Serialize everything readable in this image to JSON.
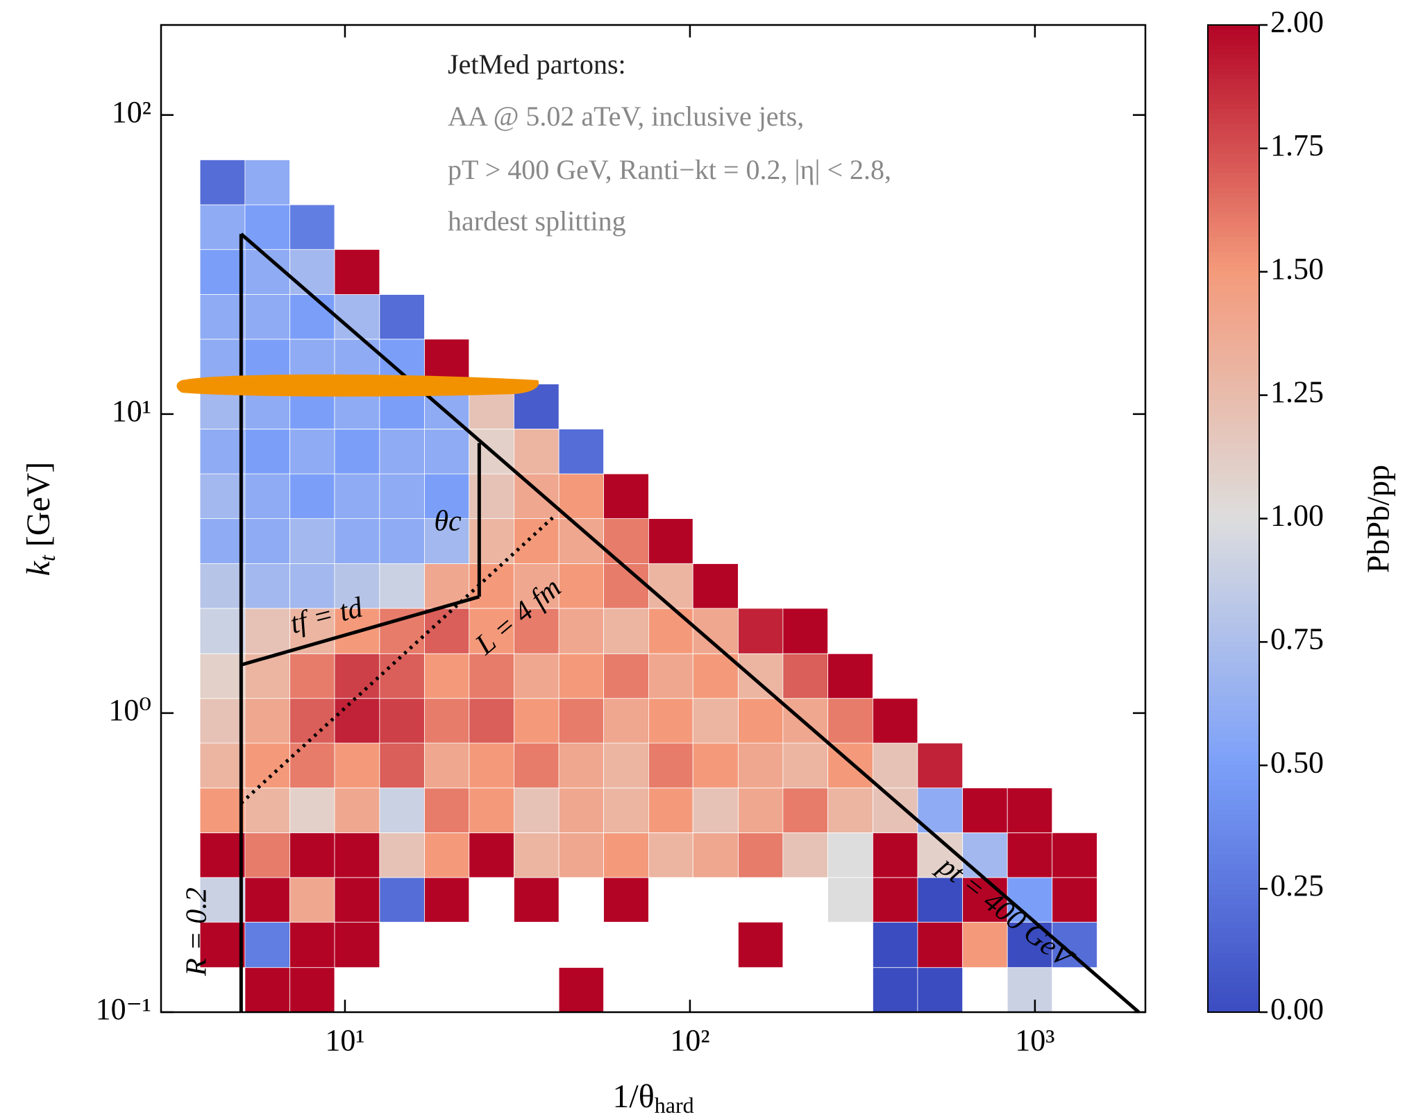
{
  "chart_data": {
    "type": "heatmap",
    "text_lines": [
      "JetMed partons:",
      "AA @ 5.02 aTeV, inclusive jets,",
      "pT > 400 GeV, Ranti−kt = 0.2, |η| < 2.8,",
      "hardest splitting"
    ],
    "xlabel": {
      "main": "1/θ",
      "sub": "hard"
    },
    "ylabel": {
      "main": "k",
      "sub": "t",
      "rest": " [GeV]"
    },
    "colorbar_label": "PbPb/pp",
    "colormap": "coolwarm",
    "xscale": "log",
    "yscale": "log",
    "xlim": [
      2.93,
      2090
    ],
    "ylim": [
      0.1,
      200
    ],
    "clim": [
      0,
      2
    ],
    "xticks": [
      {
        "value": 10,
        "label": "10¹"
      },
      {
        "value": 100,
        "label": "10²"
      },
      {
        "value": 1000,
        "label": "10³"
      }
    ],
    "yticks": [
      {
        "value": 0.1,
        "label": "10⁻¹"
      },
      {
        "value": 1,
        "label": "10⁰"
      },
      {
        "value": 10,
        "label": "10¹"
      },
      {
        "value": 100,
        "label": "10²"
      }
    ],
    "cticks": [
      {
        "value": 0,
        "label": "0.00"
      },
      {
        "value": 0.25,
        "label": "0.25"
      },
      {
        "value": 0.5,
        "label": "0.50"
      },
      {
        "value": 0.75,
        "label": "0.75"
      },
      {
        "value": 1,
        "label": "1.00"
      },
      {
        "value": 1.25,
        "label": "1.25"
      },
      {
        "value": 1.5,
        "label": "1.50"
      },
      {
        "value": 1.75,
        "label": "1.75"
      },
      {
        "value": 2,
        "label": "2.00"
      }
    ],
    "xbins": [
      3.8,
      5.13,
      6.92,
      9.33,
      12.6,
      17.0,
      22.9,
      30.9,
      41.7,
      56.2,
      75.9,
      102,
      138,
      186,
      251,
      339,
      457,
      617,
      832,
      1122,
      1514
    ],
    "ybins": [
      0.1,
      0.141,
      0.2,
      0.282,
      0.398,
      0.562,
      0.794,
      1.12,
      1.58,
      2.24,
      3.16,
      4.47,
      6.31,
      8.91,
      12.6,
      17.8,
      25.1,
      35.5,
      50.1,
      70.8
    ],
    "z": [
      [
        null,
        2,
        2,
        null,
        null,
        null,
        null,
        null,
        2,
        null,
        null,
        null,
        null,
        null,
        null,
        0,
        0,
        null,
        0.9,
        null
      ],
      [
        2,
        0.3,
        2,
        2,
        null,
        null,
        null,
        null,
        null,
        null,
        null,
        null,
        2,
        null,
        null,
        0,
        2,
        1.5,
        0,
        0.2
      ],
      [
        0.9,
        2,
        1.4,
        2,
        0.2,
        2,
        null,
        2,
        null,
        2,
        null,
        null,
        null,
        null,
        1,
        2,
        0,
        2,
        0.5,
        2
      ],
      [
        2,
        1.6,
        2,
        2,
        1.2,
        1.5,
        2,
        1.3,
        1.4,
        1.5,
        1.3,
        1.4,
        1.6,
        1.2,
        1,
        2,
        1.1,
        0.7,
        2,
        2
      ],
      [
        1.5,
        1.3,
        1.1,
        1.4,
        0.9,
        1.6,
        1.5,
        1.2,
        1.4,
        1.3,
        1.5,
        1.2,
        1.4,
        1.6,
        1.3,
        1.2,
        0.6,
        2,
        2,
        null
      ],
      [
        1.3,
        1.5,
        1.6,
        1.5,
        1.7,
        1.4,
        1.5,
        1.6,
        1.4,
        1.3,
        1.6,
        1.5,
        1.4,
        1.3,
        1.5,
        1.2,
        1.9,
        null,
        null,
        null
      ],
      [
        1.2,
        1.4,
        1.7,
        1.9,
        1.8,
        1.6,
        1.7,
        1.5,
        1.6,
        1.4,
        1.5,
        1.3,
        1.5,
        1.4,
        1.6,
        2,
        null,
        null,
        null,
        null
      ],
      [
        1.1,
        1.3,
        1.6,
        1.8,
        1.7,
        1.5,
        1.6,
        1.4,
        1.5,
        1.6,
        1.4,
        1.5,
        1.3,
        1.7,
        2,
        null,
        null,
        null,
        null,
        null
      ],
      [
        0.9,
        1.2,
        1.3,
        1.5,
        1.6,
        1.7,
        1.5,
        1.6,
        1.4,
        1.3,
        1.5,
        1.4,
        1.9,
        2,
        null,
        null,
        null,
        null,
        null,
        null
      ],
      [
        0.8,
        0.7,
        0.7,
        0.8,
        0.9,
        1.4,
        1.5,
        1.4,
        1.5,
        1.6,
        1.3,
        2,
        null,
        null,
        null,
        null,
        null,
        null,
        null,
        null
      ],
      [
        0.6,
        0.6,
        0.7,
        0.6,
        0.6,
        0.7,
        1.3,
        1.5,
        1.4,
        1.6,
        2,
        null,
        null,
        null,
        null,
        null,
        null,
        null,
        null,
        null
      ],
      [
        0.7,
        0.6,
        0.5,
        0.6,
        0.6,
        0.5,
        1.2,
        1.4,
        1.5,
        2,
        null,
        null,
        null,
        null,
        null,
        null,
        null,
        null,
        null,
        null
      ],
      [
        0.6,
        0.5,
        0.6,
        0.5,
        0.6,
        0.6,
        1.1,
        1.3,
        0.2,
        null,
        null,
        null,
        null,
        null,
        null,
        null,
        null,
        null,
        null,
        null
      ],
      [
        0.7,
        0.6,
        0.5,
        0.6,
        0.5,
        0.6,
        1.2,
        0.1,
        null,
        null,
        null,
        null,
        null,
        null,
        null,
        null,
        null,
        null,
        null,
        null
      ],
      [
        0.6,
        0.5,
        0.6,
        0.6,
        0.5,
        2,
        null,
        null,
        null,
        null,
        null,
        null,
        null,
        null,
        null,
        null,
        null,
        null,
        null,
        null
      ],
      [
        0.6,
        0.6,
        0.5,
        0.7,
        0.2,
        null,
        null,
        null,
        null,
        null,
        null,
        null,
        null,
        null,
        null,
        null,
        null,
        null,
        null,
        null
      ],
      [
        0.5,
        0.6,
        0.7,
        2,
        null,
        null,
        null,
        null,
        null,
        null,
        null,
        null,
        null,
        null,
        null,
        null,
        null,
        null,
        null,
        null
      ],
      [
        0.6,
        0.5,
        0.3,
        null,
        null,
        null,
        null,
        null,
        null,
        null,
        null,
        null,
        null,
        null,
        null,
        null,
        null,
        null,
        null,
        null
      ],
      [
        0.2,
        0.6,
        null,
        null,
        null,
        null,
        null,
        null,
        null,
        null,
        null,
        null,
        null,
        null,
        null,
        null,
        null,
        null,
        null,
        null
      ]
    ],
    "lines": [
      {
        "label": "R = 0.2",
        "x": [
          5,
          5
        ],
        "y": [
          0.1,
          40
        ],
        "style": "solid"
      },
      {
        "label": "tf = td",
        "x": [
          5,
          24.5
        ],
        "y": [
          1.45,
          2.45
        ],
        "style": "solid"
      },
      {
        "label": "θc",
        "x": [
          24.5,
          24.5
        ],
        "y": [
          2.45,
          8
        ],
        "style": "solid"
      },
      {
        "label": "L = 4 fm",
        "x": [
          5,
          40
        ],
        "y": [
          0.5,
          4.5
        ],
        "style": "dotted"
      },
      {
        "label": "pt = 400 GeV",
        "x": [
          5,
          2000
        ],
        "y": [
          40,
          0.1
        ],
        "style": "solid"
      }
    ]
  }
}
